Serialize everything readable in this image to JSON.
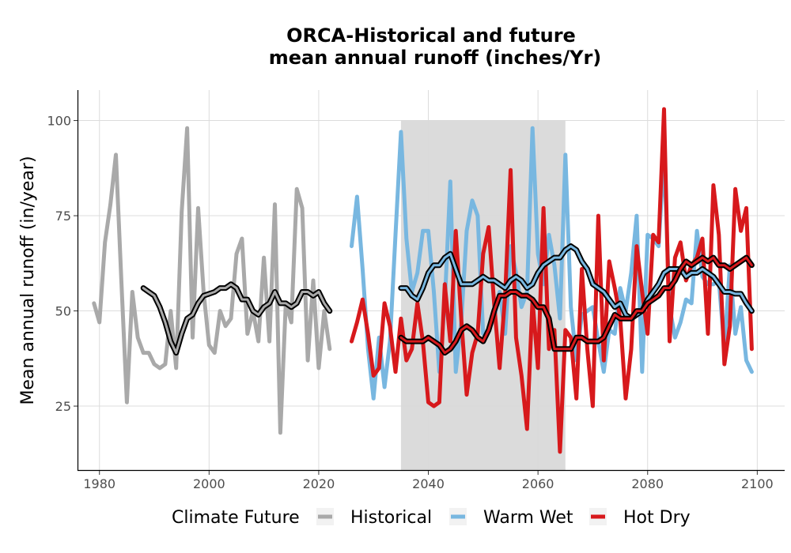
{
  "chart_data": {
    "type": "line",
    "title_line1": "ORCA-Historical and future",
    "title_line2": "mean annual runoff (inches/Yr)",
    "xlabel": "",
    "ylabel": "Mean annual runoff (in/year)",
    "xlim": [
      1976,
      2105
    ],
    "ylim": [
      8,
      108
    ],
    "x_ticks": [
      1980,
      2000,
      2020,
      2040,
      2060,
      2080,
      2100
    ],
    "y_ticks": [
      25,
      50,
      75,
      100
    ],
    "grid": true,
    "shaded_period": [
      2035,
      2065
    ],
    "legend": {
      "title": "Climate Future",
      "placement": "bottom",
      "entries": [
        "Historical",
        "Warm Wet",
        "Hot Dry"
      ]
    },
    "colors": {
      "Historical": "#a9a9a9",
      "Warm Wet": "#78b7e0",
      "Hot Dry": "#d7191c",
      "smooth": "#000000",
      "shade": "#d9d9d9"
    },
    "series": [
      {
        "name": "Historical",
        "x": [
          1979,
          1980,
          1981,
          1982,
          1983,
          1984,
          1985,
          1986,
          1987,
          1988,
          1989,
          1990,
          1991,
          1992,
          1993,
          1994,
          1995,
          1996,
          1997,
          1998,
          1999,
          2000,
          2001,
          2002,
          2003,
          2004,
          2005,
          2006,
          2007,
          2008,
          2009,
          2010,
          2011,
          2012,
          2013,
          2014,
          2015,
          2016,
          2017,
          2018,
          2019,
          2020,
          2021,
          2022
        ],
        "y": [
          52,
          47,
          68,
          78,
          91,
          58,
          26,
          55,
          43,
          39,
          39,
          36,
          35,
          36,
          50,
          35,
          76,
          98,
          43,
          77,
          55,
          41,
          39,
          50,
          46,
          48,
          65,
          69,
          44,
          50,
          42,
          64,
          42,
          78,
          18,
          52,
          47,
          82,
          77,
          37,
          58,
          35,
          50,
          40
        ]
      },
      {
        "name": "Historical smoothed",
        "x": [
          1988,
          1989,
          1990,
          1991,
          1992,
          1993,
          1994,
          1995,
          1996,
          1997,
          1998,
          1999,
          2000,
          2001,
          2002,
          2003,
          2004,
          2005,
          2006,
          2007,
          2008,
          2009,
          2010,
          2011,
          2012,
          2013,
          2014,
          2015,
          2016,
          2017,
          2018,
          2019,
          2020,
          2021,
          2022
        ],
        "y": [
          56,
          55,
          54,
          51,
          47,
          42,
          39,
          44,
          48,
          49,
          52,
          54,
          54.5,
          55,
          56,
          56,
          57,
          56,
          53,
          53,
          50,
          49,
          51,
          52,
          55,
          52,
          52,
          51,
          52,
          55,
          55,
          54,
          55,
          52,
          50
        ]
      },
      {
        "name": "Warm Wet",
        "x": [
          2026,
          2027,
          2028,
          2029,
          2030,
          2031,
          2032,
          2033,
          2034,
          2035,
          2036,
          2037,
          2038,
          2039,
          2040,
          2041,
          2042,
          2043,
          2044,
          2045,
          2046,
          2047,
          2048,
          2049,
          2050,
          2051,
          2052,
          2053,
          2054,
          2055,
          2056,
          2057,
          2058,
          2059,
          2060,
          2061,
          2062,
          2063,
          2064,
          2065,
          2066,
          2067,
          2068,
          2069,
          2070,
          2071,
          2072,
          2073,
          2074,
          2075,
          2076,
          2077,
          2078,
          2079,
          2080,
          2081,
          2082,
          2083,
          2084,
          2085,
          2086,
          2087,
          2088,
          2089,
          2090,
          2091,
          2092,
          2093,
          2094,
          2095,
          2096,
          2097,
          2098,
          2099
        ],
        "y": [
          67,
          80,
          61,
          40,
          27,
          43,
          30,
          42,
          70,
          97,
          69,
          55,
          60,
          71,
          71,
          55,
          34,
          52,
          84,
          34,
          47,
          71,
          79,
          75,
          44,
          45,
          48,
          55,
          44,
          67,
          60,
          51,
          55,
          98,
          65,
          57,
          70,
          62,
          48,
          91,
          51,
          37,
          49,
          50,
          51,
          42,
          34,
          45,
          44,
          56,
          50,
          60,
          75,
          34,
          70,
          69,
          67,
          91,
          51,
          43,
          47,
          53,
          52,
          71,
          59,
          57,
          57,
          58,
          40,
          62,
          44,
          51,
          37,
          34
        ]
      },
      {
        "name": "Warm Wet smoothed",
        "x": [
          2035,
          2036,
          2037,
          2038,
          2039,
          2040,
          2041,
          2042,
          2043,
          2044,
          2045,
          2046,
          2047,
          2048,
          2049,
          2050,
          2051,
          2052,
          2053,
          2054,
          2055,
          2056,
          2057,
          2058,
          2059,
          2060,
          2061,
          2062,
          2063,
          2064,
          2065,
          2066,
          2067,
          2068,
          2069,
          2070,
          2071,
          2072,
          2073,
          2074,
          2075,
          2076,
          2077,
          2078,
          2079,
          2080,
          2081,
          2082,
          2083,
          2084,
          2085,
          2086,
          2087,
          2088,
          2089,
          2090,
          2091,
          2092,
          2093,
          2094,
          2095,
          2096,
          2097,
          2098,
          2099
        ],
        "y": [
          56,
          56,
          54,
          53,
          56,
          60,
          62,
          62,
          64,
          65,
          61,
          57,
          57,
          57,
          58,
          59,
          58,
          58,
          57,
          56,
          58,
          59,
          58,
          56,
          57,
          60,
          62,
          63,
          64,
          64,
          66,
          67,
          66,
          63,
          61,
          57,
          56,
          55,
          53,
          51,
          52,
          49,
          48,
          49,
          50,
          53,
          55,
          57,
          60,
          61,
          61,
          61,
          59,
          60,
          60,
          61,
          60,
          59,
          57,
          55,
          55,
          54.5,
          54.5,
          52,
          50
        ]
      },
      {
        "name": "Hot Dry",
        "x": [
          2026,
          2027,
          2028,
          2029,
          2030,
          2031,
          2032,
          2033,
          2034,
          2035,
          2036,
          2037,
          2038,
          2039,
          2040,
          2041,
          2042,
          2043,
          2044,
          2045,
          2046,
          2047,
          2048,
          2049,
          2050,
          2051,
          2052,
          2053,
          2054,
          2055,
          2056,
          2057,
          2058,
          2059,
          2060,
          2061,
          2062,
          2063,
          2064,
          2065,
          2066,
          2067,
          2068,
          2069,
          2070,
          2071,
          2072,
          2073,
          2074,
          2075,
          2076,
          2077,
          2078,
          2079,
          2080,
          2081,
          2082,
          2083,
          2084,
          2085,
          2086,
          2087,
          2088,
          2089,
          2090,
          2091,
          2092,
          2093,
          2094,
          2095,
          2096,
          2097,
          2098,
          2099
        ],
        "y": [
          42,
          47,
          53,
          44,
          33,
          35,
          52,
          46,
          34,
          48,
          37,
          40,
          52,
          42,
          26,
          25,
          26,
          57,
          42,
          71,
          48,
          28,
          39,
          44,
          65,
          72,
          52,
          35,
          54,
          87,
          43,
          33,
          19,
          53,
          35,
          77,
          40,
          45,
          13,
          45,
          43,
          27,
          61,
          40,
          25,
          75,
          37,
          63,
          56,
          48,
          27,
          40,
          67,
          55,
          44,
          70,
          68,
          103,
          42,
          64,
          68,
          58,
          62,
          64,
          69,
          44,
          83,
          70,
          36,
          46,
          82,
          71,
          77,
          40
        ]
      },
      {
        "name": "Hot Dry smoothed",
        "x": [
          2035,
          2036,
          2037,
          2038,
          2039,
          2040,
          2041,
          2042,
          2043,
          2044,
          2045,
          2046,
          2047,
          2048,
          2049,
          2050,
          2051,
          2052,
          2053,
          2054,
          2055,
          2056,
          2057,
          2058,
          2059,
          2060,
          2061,
          2062,
          2063,
          2064,
          2065,
          2066,
          2067,
          2068,
          2069,
          2070,
          2071,
          2072,
          2073,
          2074,
          2075,
          2076,
          2077,
          2078,
          2079,
          2080,
          2081,
          2082,
          2083,
          2084,
          2085,
          2086,
          2087,
          2088,
          2089,
          2090,
          2091,
          2092,
          2093,
          2094,
          2095,
          2096,
          2097,
          2098,
          2099
        ],
        "y": [
          43,
          42,
          42,
          42,
          42,
          43,
          42,
          41,
          39,
          40,
          42,
          45,
          46,
          45,
          43,
          42,
          45,
          50,
          54,
          54,
          55,
          55,
          54,
          54,
          53,
          51,
          51,
          48,
          40,
          40,
          40,
          40,
          43,
          43,
          42,
          42,
          42,
          43,
          46,
          49,
          48,
          48,
          48,
          50,
          50,
          52,
          53,
          54,
          56,
          56,
          58,
          61,
          63,
          62,
          63,
          64,
          63,
          64,
          62,
          62,
          61,
          62,
          63,
          64,
          62
        ]
      }
    ]
  }
}
